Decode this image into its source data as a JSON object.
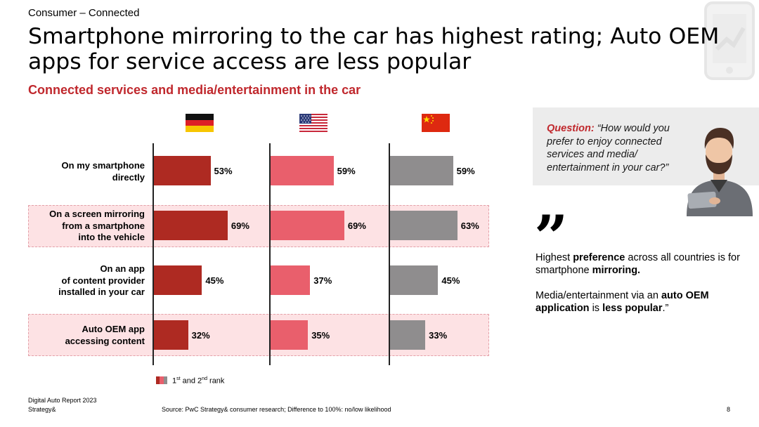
{
  "header": {
    "kicker": "Consumer – Connected",
    "title": "Smartphone mirroring to the car has highest rating; Auto OEM apps for service access are less popular",
    "subtitle": "Connected services and media/entertainment in the car"
  },
  "colors": {
    "germany": "#ae2a22",
    "usa": "#e95f6c",
    "china": "#8f8d8e",
    "accent": "#c0282d",
    "highlight": "#fde2e4"
  },
  "chart_data": {
    "type": "bar",
    "orientation": "horizontal",
    "categories": [
      "On my smartphone\ndirectly",
      "On a screen mirroring\nfrom a smartphone\ninto the vehicle",
      "On an app\nof content provider\ninstalled in your car",
      "Auto OEM app\naccessing content"
    ],
    "highlighted_categories": [
      1,
      3
    ],
    "series": [
      {
        "name": "Germany",
        "icon": "germany-flag-icon",
        "values": [
          53,
          69,
          45,
          32
        ],
        "labels": [
          "53%",
          "69%",
          "45%",
          "32%"
        ]
      },
      {
        "name": "USA",
        "icon": "usa-flag-icon",
        "values": [
          59,
          69,
          37,
          35
        ],
        "labels": [
          "59%",
          "69%",
          "37%",
          "35%"
        ]
      },
      {
        "name": "China",
        "icon": "china-flag-icon",
        "values": [
          59,
          63,
          45,
          33
        ],
        "labels": [
          "59%",
          "63%",
          "45%",
          "33%"
        ]
      }
    ],
    "unit": "%",
    "legend": {
      "label": "1st and 2nd rank",
      "position": "bottom-left"
    }
  },
  "question": {
    "label": "Question:",
    "text": "“How would you prefer  to enjoy connected services and media/ entertainment in your car?”"
  },
  "insight": {
    "quote_mark": "”",
    "p1": [
      "Highest ",
      "preference",
      " across all countries is for smartphone ",
      "mirroring."
    ],
    "p2": [
      "Media/entertainment via an ",
      "auto OEM application",
      " is ",
      "less popular",
      ".”"
    ]
  },
  "footer": {
    "report": "Digital Auto Report 2023",
    "brand": "Strategy&",
    "source": "Source: PwC Strategy& consumer research; Difference to 100%: no/low likelihood",
    "page": "8"
  }
}
